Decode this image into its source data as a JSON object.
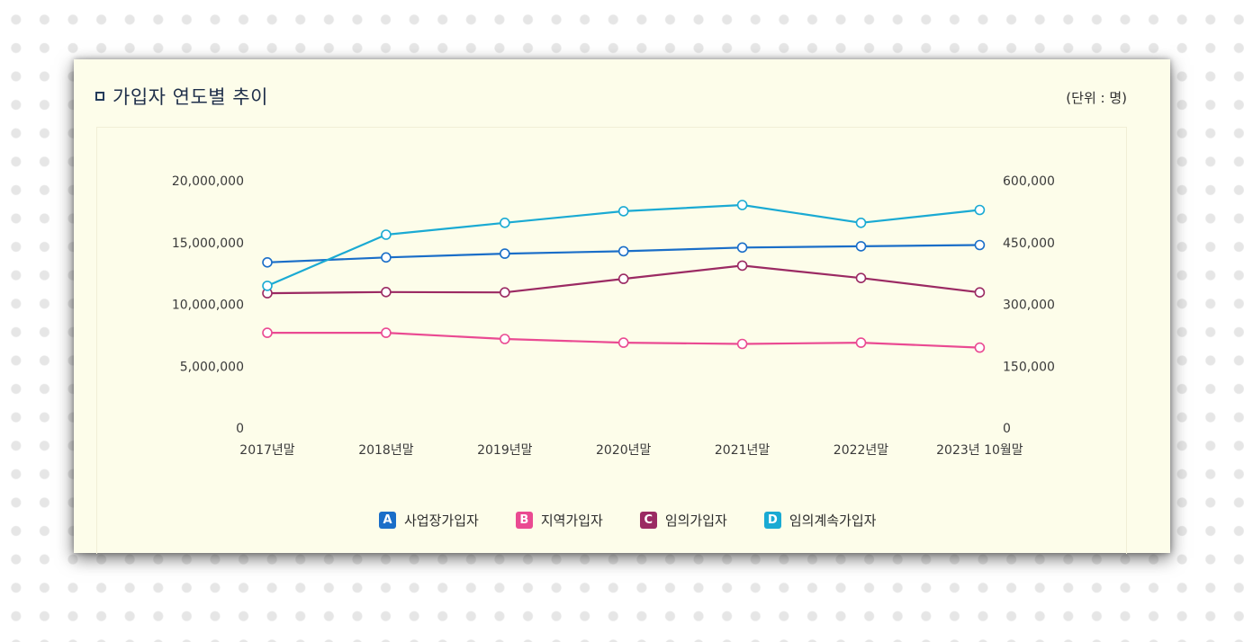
{
  "header": {
    "title": "가입자 연도별 추이",
    "unit": "(단위 : 명)"
  },
  "chart_data": {
    "type": "line",
    "categories": [
      "2017년말",
      "2018년말",
      "2019년말",
      "2020년말",
      "2021년말",
      "2022년말",
      "2023년 10월말"
    ],
    "y_left": {
      "ylim": [
        0,
        20000000
      ],
      "ticks": [
        "20,000,000",
        "15,000,000",
        "10,000,000",
        "5,000,000",
        "0"
      ],
      "tick_values": [
        20000000,
        15000000,
        10000000,
        5000000,
        0
      ]
    },
    "y_right": {
      "ylim": [
        0,
        600000
      ],
      "ticks": [
        "600,000",
        "450,000",
        "300,000",
        "150,000",
        "0"
      ],
      "tick_values": [
        600000,
        450000,
        300000,
        150000,
        0
      ]
    },
    "series": [
      {
        "name": "사업장가입자",
        "badge": "A",
        "color": "#1a6ec8",
        "axis": "left",
        "values": [
          13400000,
          13800000,
          14100000,
          14300000,
          14600000,
          14700000,
          14800000
        ]
      },
      {
        "name": "지역가입자",
        "badge": "B",
        "color": "#ea4a92",
        "axis": "left",
        "values": [
          7700000,
          7700000,
          7200000,
          6900000,
          6800000,
          6900000,
          6500000
        ]
      },
      {
        "name": "임의가입자",
        "badge": "C",
        "color": "#9b2a63",
        "axis": "right",
        "values": [
          327000,
          330000,
          329000,
          362000,
          394000,
          364000,
          329000
        ]
      },
      {
        "name": "임의계속가입자",
        "badge": "D",
        "color": "#1aaad3",
        "axis": "right",
        "values": [
          345000,
          469000,
          498000,
          526000,
          541000,
          498000,
          529000
        ]
      }
    ],
    "legend_position": "bottom-center",
    "grid": false
  }
}
